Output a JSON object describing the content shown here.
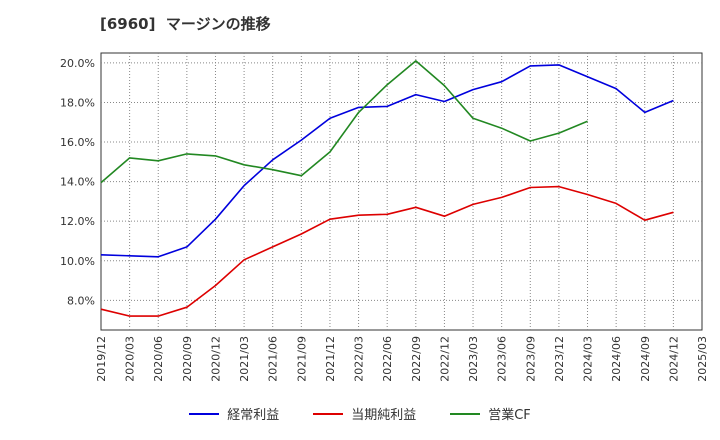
{
  "title": "[6960]  マージンの推移",
  "chart_data": {
    "type": "line",
    "title": "[6960]  マージンの推移",
    "xlabel": "",
    "ylabel": "",
    "x": [
      "2019/12",
      "2020/03",
      "2020/06",
      "2020/09",
      "2020/12",
      "2021/03",
      "2021/06",
      "2021/09",
      "2021/12",
      "2022/03",
      "2022/06",
      "2022/09",
      "2022/12",
      "2023/03",
      "2023/06",
      "2023/09",
      "2023/12",
      "2024/03",
      "2024/06",
      "2024/09",
      "2024/12",
      "2025/03"
    ],
    "ylim": [
      6.5,
      20.5
    ],
    "yticks": [
      8,
      10,
      12,
      14,
      16,
      18,
      20
    ],
    "ytick_labels": [
      "8.0%",
      "10.0%",
      "12.0%",
      "14.0%",
      "16.0%",
      "18.0%",
      "20.0%"
    ],
    "grid": true,
    "legend_position": "bottom",
    "series": [
      {
        "name": "経常利益",
        "color": "#0000dd",
        "values": [
          10.3,
          10.25,
          10.2,
          10.7,
          12.1,
          13.8,
          15.1,
          16.1,
          17.2,
          17.75,
          17.8,
          18.4,
          18.05,
          18.65,
          19.05,
          19.85,
          19.9,
          19.3,
          18.7,
          17.5,
          18.1,
          null
        ]
      },
      {
        "name": "当期純利益",
        "color": "#dd0000",
        "values": [
          7.55,
          7.2,
          7.2,
          7.65,
          8.75,
          10.05,
          10.7,
          11.35,
          12.1,
          12.3,
          12.35,
          12.7,
          12.25,
          12.85,
          13.2,
          13.7,
          13.75,
          13.35,
          12.9,
          12.05,
          12.45,
          null
        ]
      },
      {
        "name": "営業CF",
        "color": "#228822",
        "values": [
          13.95,
          15.2,
          15.05,
          15.4,
          15.3,
          14.85,
          14.6,
          14.3,
          15.5,
          17.5,
          18.9,
          20.1,
          18.85,
          17.2,
          16.7,
          16.05,
          16.45,
          17.05,
          null,
          null,
          null,
          null
        ]
      }
    ]
  }
}
